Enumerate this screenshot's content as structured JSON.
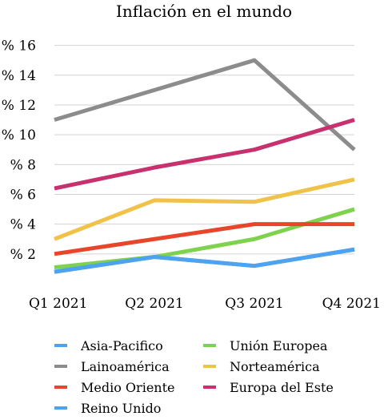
{
  "chart_data": {
    "type": "line",
    "title": "Inflación en el mundo",
    "categories": [
      "Q1 2021",
      "Q2 2021",
      "Q3 2021",
      "Q4 2021"
    ],
    "y_tick_labels": [
      "% 2",
      "% 4",
      "% 6",
      "% 8",
      "% 10",
      "% 12",
      "% 14",
      "% 16"
    ],
    "y_tick_values": [
      2,
      4,
      6,
      8,
      10,
      12,
      14,
      16
    ],
    "ylim": [
      0,
      17
    ],
    "grid": true,
    "legend_position": "bottom",
    "series": [
      {
        "name": "Asia-Pacifico",
        "color": "#4da3f0",
        "values": [
          0.8,
          1.8,
          1.2,
          2.3
        ]
      },
      {
        "name": "Unión Europea",
        "color": "#7fd24d",
        "values": [
          1.1,
          1.8,
          3.0,
          5.0
        ]
      },
      {
        "name": "Lainoamérica",
        "color": "#8c8c8c",
        "values": [
          11.0,
          13.0,
          15.0,
          9.0
        ]
      },
      {
        "name": "Norteamérica",
        "color": "#f0c24a",
        "values": [
          3.0,
          5.6,
          5.5,
          7.0
        ]
      },
      {
        "name": "Medio Oriente",
        "color": "#e8452a",
        "values": [
          2.0,
          3.0,
          4.0,
          4.0
        ]
      },
      {
        "name": "Europa del Este",
        "color": "#c8306e",
        "values": [
          6.4,
          7.8,
          9.0,
          11.0
        ]
      },
      {
        "name": "Reino Unido",
        "color": "#4da3f0",
        "values": [
          0.8,
          1.8,
          1.2,
          2.3
        ]
      }
    ]
  }
}
